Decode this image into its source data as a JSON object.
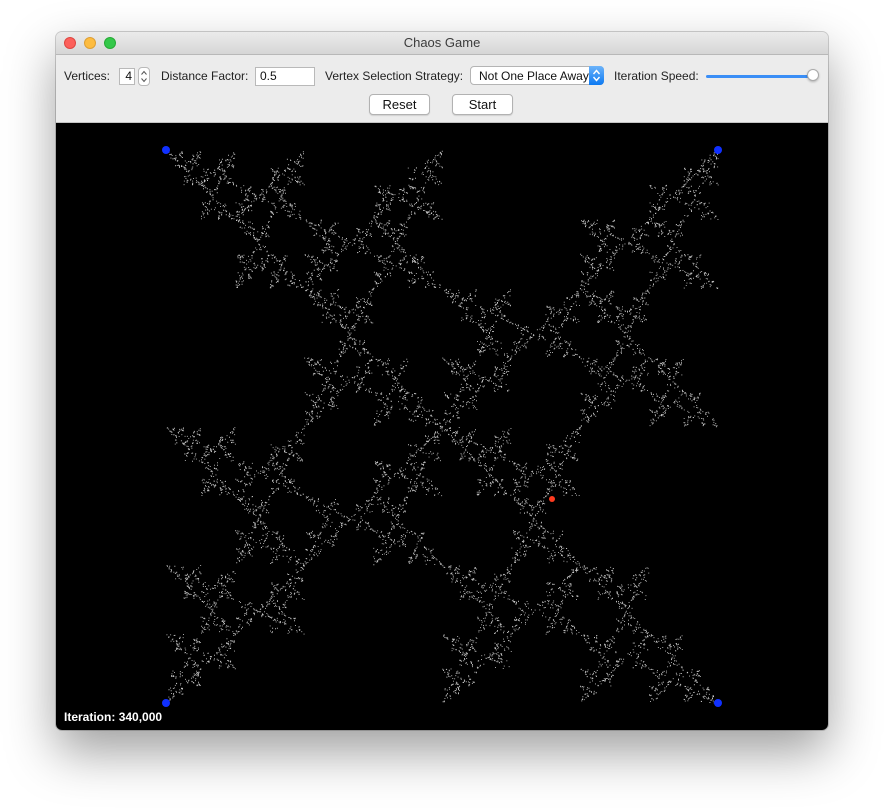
{
  "window": {
    "title": "Chaos Game"
  },
  "toolbar": {
    "vertices_label": "Vertices:",
    "vertices_value": "4",
    "distance_label": "Distance Factor:",
    "distance_value": "0.5",
    "strategy_label": "Vertex Selection Strategy:",
    "strategy_value": "Not One Place Away",
    "speed_label": "Iteration Speed:",
    "speed_level": 1.0,
    "reset_label": "Reset",
    "start_label": "Start"
  },
  "canvas": {
    "iteration_label": "Iteration:",
    "iteration_value": "340,000",
    "fractal_color": "#cfcfcf",
    "vertex_color": "#1030ff",
    "current_point_color": "#ff3b1f",
    "background": "#000000"
  },
  "icons": [
    "close-icon",
    "minimize-icon",
    "maximize-icon",
    "stepper-up-icon",
    "stepper-down-icon",
    "select-arrows-icon"
  ]
}
